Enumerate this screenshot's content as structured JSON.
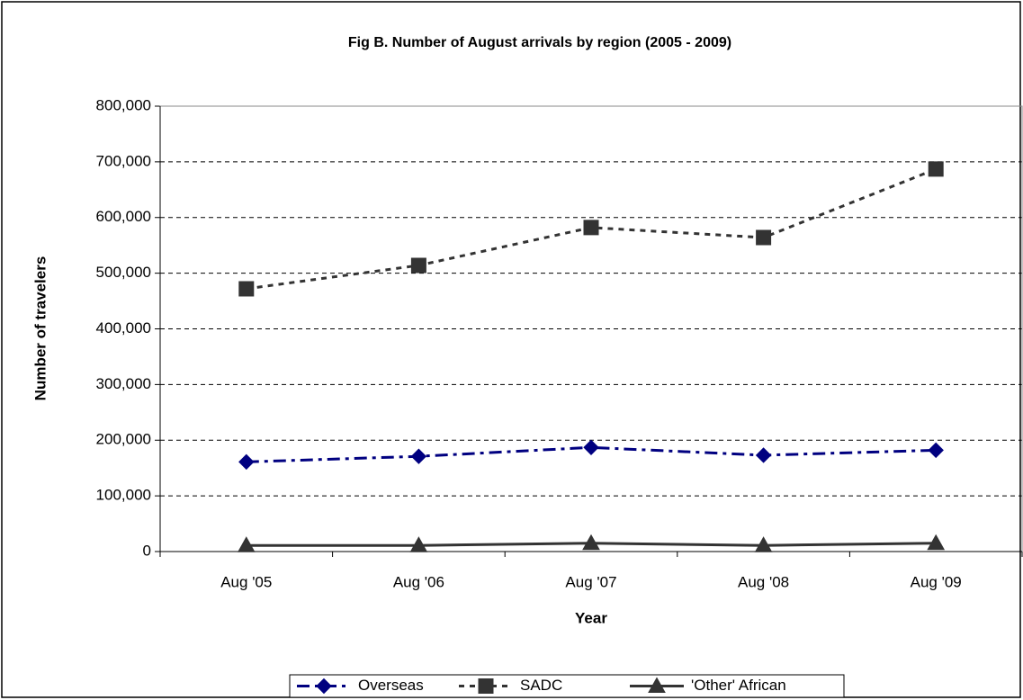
{
  "chart_data": {
    "type": "line",
    "title": "Fig B. Number of August arrivals by region (2005 - 2009)",
    "x_label": "Year",
    "y_label": "Number of travelers",
    "categories": [
      "Aug '05",
      "Aug '06",
      "Aug '07",
      "Aug '08",
      "Aug '09"
    ],
    "series": [
      {
        "name": "Overseas",
        "color": "#000080",
        "marker": "diamond",
        "dash": "dash-dot",
        "values": [
          161000,
          171000,
          187000,
          173000,
          182000
        ]
      },
      {
        "name": "SADC",
        "color": "#333333",
        "marker": "square",
        "dash": "dashed",
        "values": [
          472000,
          514000,
          582000,
          564000,
          687000
        ]
      },
      {
        "name": "'Other' African",
        "color": "#333333",
        "marker": "triangle",
        "dash": "solid",
        "values": [
          11000,
          11000,
          15000,
          11000,
          15000
        ]
      }
    ],
    "ylim": [
      0,
      800000
    ],
    "yticks": [
      0,
      {
        "value": 100000,
        "label": "100,000"
      },
      {
        "value": 200000,
        "label": "200,000"
      },
      {
        "value": 300000,
        "label": "300,000"
      },
      {
        "value": 400000,
        "label": "400,000"
      },
      {
        "value": 500000,
        "label": "500,000"
      },
      {
        "value": 600000,
        "label": "600,000"
      },
      {
        "value": 700000,
        "label": "700,000"
      },
      {
        "value": 800000,
        "label": "800,000"
      }
    ],
    "grid": true,
    "legend": "bottom"
  }
}
